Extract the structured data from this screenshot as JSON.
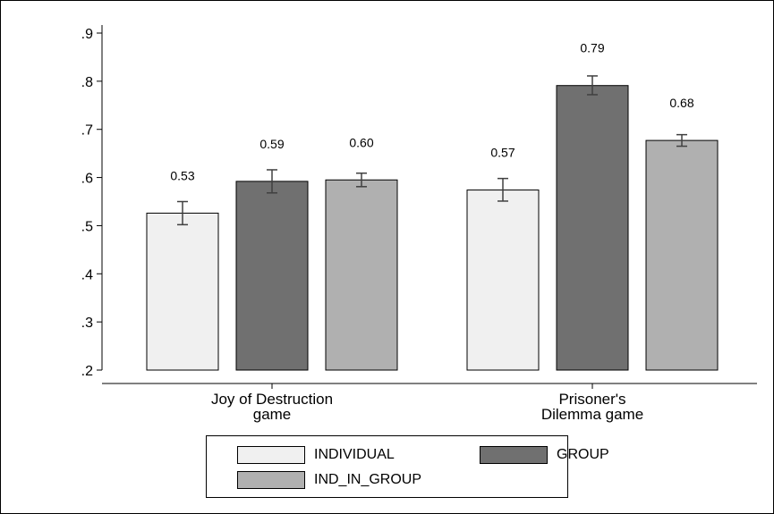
{
  "chart_data": {
    "type": "bar",
    "categories": [
      [
        "Joy of Destruction",
        "game"
      ],
      [
        "Prisoner's",
        "Dilemma game"
      ]
    ],
    "series": [
      {
        "name": "INDIVIDUAL",
        "color": "#f0f0f0",
        "values": [
          0.526,
          0.574
        ],
        "ci_low": [
          0.502,
          0.551
        ],
        "ci_high": [
          0.55,
          0.598
        ],
        "labels": [
          "0.53",
          "0.57"
        ]
      },
      {
        "name": "GROUP",
        "color": "#707070",
        "values": [
          0.592,
          0.791
        ],
        "ci_low": [
          0.568,
          0.772
        ],
        "ci_high": [
          0.616,
          0.811
        ],
        "labels": [
          "0.59",
          "0.79"
        ]
      },
      {
        "name": "IND_IN_GROUP",
        "color": "#b0b0b0",
        "values": [
          0.595,
          0.677
        ],
        "ci_low": [
          0.581,
          0.665
        ],
        "ci_high": [
          0.609,
          0.689
        ],
        "labels": [
          "0.60",
          "0.68"
        ]
      }
    ],
    "yticks": [
      0.2,
      0.3,
      0.4,
      0.5,
      0.6,
      0.7,
      0.8,
      0.9
    ],
    "yticklabels": [
      ".2",
      ".3",
      ".4",
      ".5",
      ".6",
      ".7",
      ".8",
      ".9"
    ],
    "ylim": [
      0.2,
      0.9
    ],
    "grid": false,
    "legend_position": "bottom"
  }
}
